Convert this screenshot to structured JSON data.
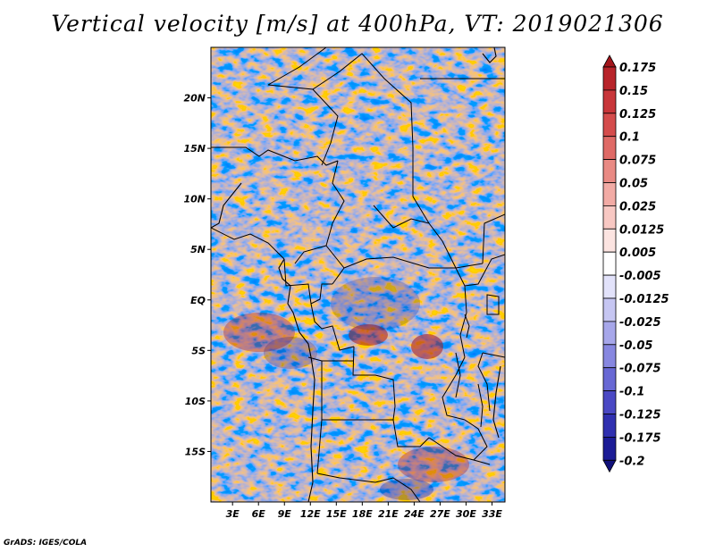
{
  "title": "Vertical velocity [m/s] at 400hPa, VT: 2019021306",
  "credit": "GrADS: IGES/COLA",
  "lat_labels": [
    "20N",
    "15N",
    "10N",
    "5N",
    "EQ",
    "5S",
    "10S",
    "15S"
  ],
  "lat_values": [
    20,
    15,
    10,
    5,
    0,
    -5,
    -10,
    -15
  ],
  "lon_labels": [
    "3E",
    "6E",
    "9E",
    "12E",
    "15E",
    "18E",
    "21E",
    "24E",
    "27E",
    "30E",
    "33E"
  ],
  "lon_values": [
    3,
    6,
    9,
    12,
    15,
    18,
    21,
    24,
    27,
    30,
    33
  ],
  "map_extent": {
    "lon_min": 0.5,
    "lon_max": 34.5,
    "lat_min": -20,
    "lat_max": 25
  },
  "colorbar": {
    "labels": [
      "0.175",
      "0.15",
      "0.125",
      "0.1",
      "0.075",
      "0.05",
      "0.025",
      "0.0125",
      "0.005",
      "-0.005",
      "-0.0125",
      "-0.025",
      "-0.05",
      "-0.075",
      "-0.1",
      "-0.125",
      "-0.175",
      "-0.2"
    ],
    "colors": [
      "#a3161c",
      "#b8242a",
      "#c8363a",
      "#d44c4c",
      "#df6a66",
      "#e98a84",
      "#f2aba5",
      "#f8c8c3",
      "#fce4e1",
      "#ffffff",
      "#e2e2fa",
      "#c6c6f2",
      "#a7a7ea",
      "#8787e0",
      "#6868d4",
      "#4a48c4",
      "#3030b0",
      "#1c1c96",
      "#10107a"
    ]
  },
  "colors": {
    "positive": "#d23c3c",
    "negative": "#4848cc",
    "neutral": "#ffffff"
  }
}
